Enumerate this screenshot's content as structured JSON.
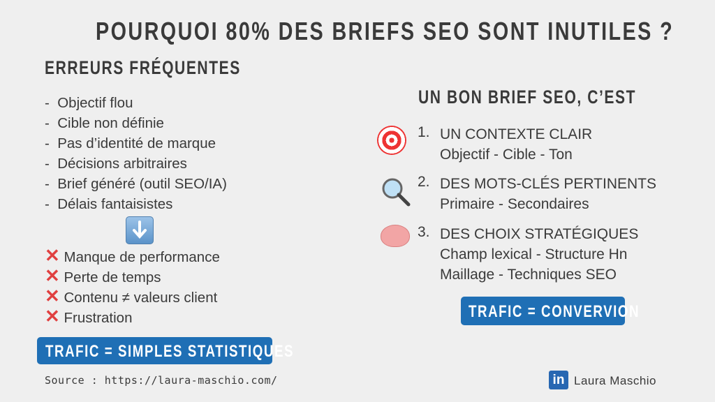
{
  "title": "POURQUOI 80% DES BRIEFS SEO SONT INUTILES ?",
  "left": {
    "heading": "ERREURS FRÉQUENTES",
    "errors": [
      "Objectif flou",
      "Cible non définie",
      "Pas d’identité de marque",
      "Décisions arbitraires",
      "Brief généré (outil SEO/IA)",
      "Délais fantaisistes"
    ],
    "arrow_icon": "down-arrow-icon",
    "consequences": [
      "Manque de performance",
      "Perte de temps",
      "Contenu ≠ valeurs client",
      "Frustration"
    ],
    "consequence_icon": "cross-mark-icon",
    "badge": "TRAFIC = SIMPLES STATISTIQUES"
  },
  "right": {
    "heading": "UN BON BRIEF SEO, C’EST",
    "items": [
      {
        "num": "1.",
        "icon": "target-icon",
        "title": "UN CONTEXTE CLAIR",
        "lines": [
          "Objectif - Cible - Ton"
        ]
      },
      {
        "num": "2.",
        "icon": "magnifier-icon",
        "title": "DES MOTS-CLÉS PERTINENTS",
        "lines": [
          "Primaire - Secondaires"
        ]
      },
      {
        "num": "3.",
        "icon": "brain-icon",
        "title": "DES CHOIX STRATÉGIQUES",
        "lines": [
          "Champ lexical - Structure Hn",
          "Maillage - Techniques SEO"
        ]
      }
    ],
    "badge": "TRAFIC = CONVERVION"
  },
  "footer": {
    "source": "Source : https://laura-maschio.com/",
    "linkedin_logo": "in",
    "author": "Laura Maschio"
  },
  "colors": {
    "background": "#efefef",
    "text": "#3a3a3a",
    "accent": "#1f6fb5",
    "cross": "#e04040"
  }
}
